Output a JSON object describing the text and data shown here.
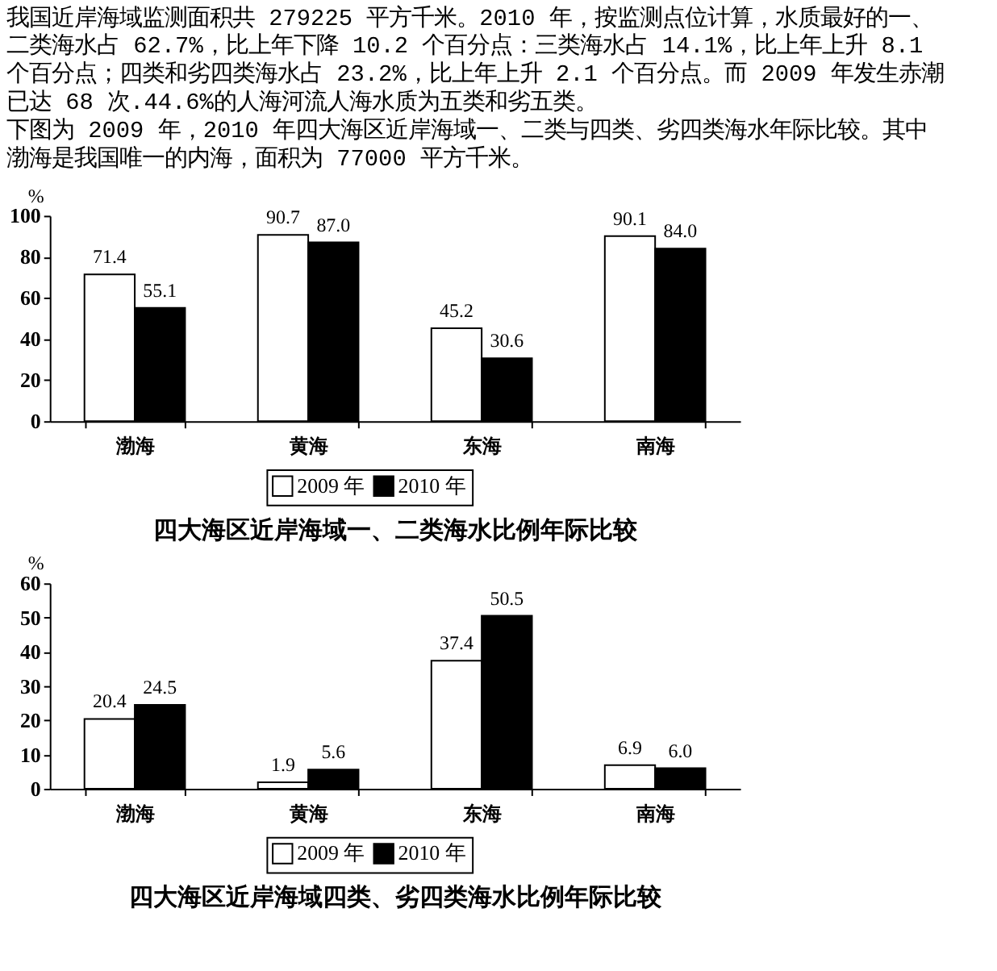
{
  "chart_data": [
    {
      "type": "bar",
      "title": "四大海区近岸海域一、二类海水比例年际比较",
      "ylabel": "%",
      "annotations": [
        "我国近岸海域监测面积共 279225 平方千米。2010 年，按监测点位计算，水质最好的一、二类海水占 62.7%，比上年下降 10.2 个百分点：三类海水占 14.1%，比上年上升 8.1 个百分点；四类和劣四类海水占 23.2%，比上年上升 2.1 个百分点。而 2009 年发生赤潮已达 68 次.44.6%的人海河流人海水质为五类和劣五类。",
        "下图为 2009 年，2010 年四大海区近岸海域一、二类与四类、劣四类海水年际比较。其中渤海是我国唯一的内海，面积为 77000 平方千米。"
      ],
      "categories": [
        "渤海",
        "黄海",
        "东海",
        "南海"
      ],
      "series": [
        {
          "name": "2009 年",
          "color": "#ffffff",
          "values": [
            71.4,
            90.7,
            45.2,
            90.1
          ],
          "value_labels": [
            "71.4",
            "90.7",
            "45.2",
            "90.1"
          ]
        },
        {
          "name": "2010 年",
          "color": "#000000",
          "values": [
            55.1,
            87.0,
            30.6,
            84.0
          ],
          "value_labels": [
            "55.1",
            "87.0",
            "30.6",
            "84.0"
          ]
        }
      ],
      "ylim": [
        0,
        100
      ],
      "yticks": [
        0,
        20,
        40,
        60,
        80,
        100
      ],
      "legend": "bottom"
    },
    {
      "type": "bar",
      "title": "四大海区近岸海域四类、劣四类海水比例年际比较",
      "ylabel": "%",
      "categories": [
        "渤海",
        "黄海",
        "东海",
        "南海"
      ],
      "series": [
        {
          "name": "2009 年",
          "color": "#ffffff",
          "values": [
            20.4,
            1.9,
            37.4,
            6.9
          ],
          "value_labels": [
            "20.4",
            "1.9",
            "37.4",
            "6.9"
          ]
        },
        {
          "name": "2010 年",
          "color": "#000000",
          "values": [
            24.5,
            5.6,
            50.5,
            6.0
          ],
          "value_labels": [
            "24.5",
            "5.6",
            "50.5",
            "6.0"
          ]
        }
      ],
      "ylim": [
        0,
        60
      ],
      "yticks": [
        0,
        10,
        20,
        30,
        40,
        50,
        60
      ],
      "legend": "bottom"
    }
  ]
}
